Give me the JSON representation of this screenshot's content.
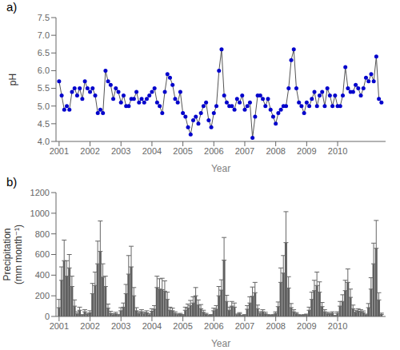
{
  "chart_data": [
    {
      "type": "line",
      "title": "a)",
      "xlabel": "Year",
      "ylabel": "pH",
      "x": [
        2001,
        2001.083333,
        2001.166667,
        2001.25,
        2001.333333,
        2001.416667,
        2001.5,
        2001.583333,
        2001.666667,
        2001.75,
        2001.833333,
        2001.916667,
        2002,
        2002.083333,
        2002.166667,
        2002.25,
        2002.333333,
        2002.416667,
        2002.5,
        2002.583333,
        2002.666667,
        2002.75,
        2002.833333,
        2002.916667,
        2003,
        2003.083333,
        2003.166667,
        2003.25,
        2003.333333,
        2003.416667,
        2003.5,
        2003.583333,
        2003.666667,
        2003.75,
        2003.833333,
        2003.916667,
        2004,
        2004.083333,
        2004.166667,
        2004.25,
        2004.333333,
        2004.416667,
        2004.5,
        2004.583333,
        2004.666667,
        2004.75,
        2004.833333,
        2004.916667,
        2005,
        2005.083333,
        2005.166667,
        2005.25,
        2005.333333,
        2005.416667,
        2005.5,
        2005.583333,
        2005.666667,
        2005.75,
        2005.833333,
        2005.916667,
        2006,
        2006.083333,
        2006.166667,
        2006.25,
        2006.333333,
        2006.416667,
        2006.5,
        2006.583333,
        2006.666667,
        2006.75,
        2006.833333,
        2006.916667,
        2007,
        2007.083333,
        2007.166667,
        2007.25,
        2007.333333,
        2007.416667,
        2007.5,
        2007.583333,
        2007.666667,
        2007.75,
        2007.833333,
        2007.916667,
        2008,
        2008.083333,
        2008.166667,
        2008.25,
        2008.333333,
        2008.416667,
        2008.5,
        2008.583333,
        2008.666667,
        2008.75,
        2008.833333,
        2008.916667,
        2009,
        2009.083333,
        2009.166667,
        2009.25,
        2009.333333,
        2009.416667,
        2009.5,
        2009.583333,
        2009.666667,
        2009.75,
        2009.833333,
        2009.916667,
        2010,
        2010.083333,
        2010.166667,
        2010.25,
        2010.333333,
        2010.416667,
        2010.5,
        2010.583333,
        2010.666667,
        2010.75,
        2010.833333,
        2010.916667,
        2011,
        2011.083333,
        2011.166667,
        2011.25,
        2011.333333,
        2011.416667
      ],
      "series": [
        {
          "type": "line",
          "color": "#555555",
          "values": [
            5.7,
            5.3,
            4.9,
            5.0,
            4.9,
            5.4,
            5.5,
            5.3,
            5.5,
            5.2,
            5.7,
            5.5,
            5.4,
            5.5,
            5.3,
            4.8,
            4.9,
            4.8,
            6.0,
            5.7,
            5.6,
            5.2,
            5.5,
            5.4,
            5.1,
            5.3,
            5.0,
            5.0,
            5.2,
            5.2,
            5.4,
            5.1,
            5.2,
            5.1,
            5.2,
            5.3,
            5.4,
            5.5,
            5.1,
            5.0,
            4.8,
            5.4,
            5.9,
            5.8,
            5.6,
            5.2,
            5.1,
            5.4,
            4.8,
            4.7,
            4.4,
            4.2,
            4.6,
            4.7,
            4.5,
            4.8,
            5.0,
            5.1,
            4.6,
            4.4,
            4.8,
            5.0,
            6.0,
            6.6,
            5.3,
            5.1,
            5.0,
            5.0,
            4.9,
            5.2,
            5.1,
            5.3,
            4.9,
            5.0,
            5.1,
            4.1,
            4.7,
            5.3,
            5.3,
            5.2,
            5.0,
            5.2,
            4.9,
            4.7,
            4.5,
            4.8,
            4.9,
            5.0,
            5.0,
            5.5,
            6.3,
            6.6,
            5.5,
            5.1,
            5.0,
            4.8,
            5.1,
            5.0,
            5.2,
            5.4,
            5.0,
            5.3,
            5.4,
            5.0,
            5.5,
            5.3,
            5.0,
            5.3,
            5.0,
            5.0,
            5.3,
            6.1,
            5.5,
            5.4,
            5.4,
            5.6,
            5.5,
            5.3,
            5.5,
            5.8,
            5.7,
            5.9,
            5.7,
            6.4,
            5.2,
            5.1
          ]
        },
        {
          "type": "scatter",
          "color": "#0000cc",
          "marker": "circle",
          "values": [
            5.7,
            5.3,
            4.9,
            5.0,
            4.9,
            5.4,
            5.5,
            5.3,
            5.5,
            5.2,
            5.7,
            5.5,
            5.4,
            5.5,
            5.3,
            4.8,
            4.9,
            4.8,
            6.0,
            5.7,
            5.6,
            5.2,
            5.5,
            5.4,
            5.1,
            5.3,
            5.0,
            5.0,
            5.2,
            5.2,
            5.4,
            5.1,
            5.2,
            5.1,
            5.2,
            5.3,
            5.4,
            5.5,
            5.1,
            5.0,
            4.8,
            5.4,
            5.9,
            5.8,
            5.6,
            5.2,
            5.1,
            5.4,
            4.8,
            4.7,
            4.4,
            4.2,
            4.6,
            4.7,
            4.5,
            4.8,
            5.0,
            5.1,
            4.6,
            4.4,
            4.8,
            5.0,
            6.0,
            6.6,
            5.3,
            5.1,
            5.0,
            5.0,
            4.9,
            5.2,
            5.1,
            5.3,
            4.9,
            5.0,
            5.1,
            4.1,
            4.7,
            5.3,
            5.3,
            5.2,
            5.0,
            5.2,
            4.9,
            4.7,
            4.5,
            4.8,
            4.9,
            5.0,
            5.0,
            5.5,
            6.3,
            6.6,
            5.5,
            5.1,
            5.0,
            4.8,
            5.1,
            5.0,
            5.2,
            5.4,
            5.0,
            5.3,
            5.4,
            5.0,
            5.5,
            5.3,
            5.0,
            5.3,
            5.0,
            5.0,
            5.3,
            6.1,
            5.5,
            5.4,
            5.4,
            5.6,
            5.5,
            5.3,
            5.5,
            5.8,
            5.7,
            5.9,
            5.7,
            6.4,
            5.2,
            5.1
          ]
        }
      ],
      "xlim": [
        2000.9,
        2011.55
      ],
      "xticks": [
        2001,
        2002,
        2003,
        2004,
        2005,
        2006,
        2007,
        2008,
        2009,
        2010
      ],
      "ylim": [
        4.0,
        7.5
      ],
      "yticks": [
        {
          "value": 4,
          "label": "4.0"
        },
        4.5,
        {
          "value": 5,
          "label": "5.0"
        },
        5.5,
        {
          "value": 6,
          "label": "6.0"
        },
        6.5,
        {
          "value": 7,
          "label": "7.0"
        },
        7.5
      ],
      "grid": false
    },
    {
      "type": "bar",
      "title": "b)",
      "xlabel": "Year",
      "ylabel": "Precipitation\n(mm month⁻¹)",
      "x": [
        2001,
        2001.083333,
        2001.166667,
        2001.25,
        2001.333333,
        2001.416667,
        2001.5,
        2001.583333,
        2001.666667,
        2001.75,
        2001.833333,
        2001.916667,
        2002,
        2002.083333,
        2002.166667,
        2002.25,
        2002.333333,
        2002.416667,
        2002.5,
        2002.583333,
        2002.666667,
        2002.75,
        2002.833333,
        2002.916667,
        2003,
        2003.083333,
        2003.166667,
        2003.25,
        2003.333333,
        2003.416667,
        2003.5,
        2003.583333,
        2003.666667,
        2003.75,
        2003.833333,
        2003.916667,
        2004,
        2004.083333,
        2004.166667,
        2004.25,
        2004.333333,
        2004.416667,
        2004.5,
        2004.583333,
        2004.666667,
        2004.75,
        2004.833333,
        2004.916667,
        2005,
        2005.083333,
        2005.166667,
        2005.25,
        2005.333333,
        2005.416667,
        2005.5,
        2005.583333,
        2005.666667,
        2005.75,
        2005.833333,
        2005.916667,
        2006,
        2006.083333,
        2006.166667,
        2006.25,
        2006.333333,
        2006.416667,
        2006.5,
        2006.583333,
        2006.666667,
        2006.75,
        2006.833333,
        2006.916667,
        2007,
        2007.083333,
        2007.166667,
        2007.25,
        2007.333333,
        2007.416667,
        2007.5,
        2007.583333,
        2007.666667,
        2007.75,
        2007.833333,
        2007.916667,
        2008,
        2008.083333,
        2008.166667,
        2008.25,
        2008.333333,
        2008.416667,
        2008.5,
        2008.583333,
        2008.666667,
        2008.75,
        2008.833333,
        2008.916667,
        2009,
        2009.083333,
        2009.166667,
        2009.25,
        2009.333333,
        2009.416667,
        2009.5,
        2009.583333,
        2009.666667,
        2009.75,
        2009.833333,
        2009.916667,
        2010,
        2010.083333,
        2010.166667,
        2010.25,
        2010.333333,
        2010.416667,
        2010.5,
        2010.583333,
        2010.666667,
        2010.75,
        2010.833333,
        2010.916667,
        2011,
        2011.083333,
        2011.166667,
        2011.25,
        2011.333333,
        2011.416667
      ],
      "values": [
        85,
        350,
        540,
        390,
        470,
        290,
        100,
        25,
        60,
        10,
        45,
        20,
        35,
        220,
        300,
        510,
        630,
        380,
        290,
        80,
        30,
        15,
        25,
        10,
        55,
        90,
        220,
        410,
        480,
        200,
        55,
        30,
        45,
        25,
        35,
        15,
        50,
        70,
        280,
        265,
        260,
        245,
        165,
        60,
        55,
        30,
        15,
        20,
        10,
        60,
        80,
        105,
        130,
        200,
        110,
        75,
        40,
        20,
        5,
        10,
        55,
        70,
        200,
        255,
        545,
        145,
        60,
        100,
        90,
        15,
        25,
        5,
        10,
        70,
        130,
        195,
        230,
        75,
        30,
        45,
        25,
        10,
        5,
        10,
        30,
        95,
        330,
        420,
        715,
        275,
        85,
        45,
        25,
        10,
        5,
        10,
        15,
        60,
        165,
        250,
        300,
        235,
        95,
        45,
        25,
        20,
        30,
        5,
        30,
        100,
        145,
        250,
        330,
        185,
        75,
        40,
        50,
        45,
        35,
        15,
        85,
        265,
        510,
        660,
        160,
        20
      ],
      "errors": [
        80,
        130,
        200,
        150,
        130,
        100,
        60,
        20,
        30,
        8,
        20,
        10,
        20,
        100,
        130,
        220,
        295,
        130,
        100,
        40,
        20,
        10,
        15,
        8,
        30,
        40,
        90,
        180,
        200,
        80,
        30,
        15,
        20,
        15,
        20,
        10,
        25,
        35,
        110,
        100,
        110,
        100,
        70,
        30,
        25,
        15,
        8,
        10,
        8,
        30,
        40,
        50,
        60,
        80,
        50,
        40,
        20,
        10,
        5,
        8,
        25,
        35,
        90,
        100,
        220,
        60,
        30,
        45,
        40,
        8,
        12,
        5,
        8,
        35,
        60,
        90,
        100,
        35,
        15,
        20,
        15,
        8,
        5,
        8,
        15,
        45,
        140,
        170,
        300,
        110,
        40,
        20,
        12,
        8,
        5,
        8,
        8,
        30,
        70,
        100,
        130,
        100,
        40,
        20,
        15,
        10,
        15,
        5,
        15,
        45,
        65,
        100,
        130,
        80,
        35,
        20,
        25,
        20,
        18,
        8,
        40,
        110,
        200,
        270,
        70,
        12
      ],
      "color": "#606060",
      "xlim": [
        2000.9,
        2011.55
      ],
      "xticks": [
        2001,
        2002,
        2003,
        2004,
        2005,
        2006,
        2007,
        2008,
        2009,
        2010
      ],
      "ylim": [
        0,
        1200
      ],
      "yticks": [
        0,
        200,
        400,
        600,
        800,
        1000,
        1200
      ],
      "grid": false
    }
  ]
}
